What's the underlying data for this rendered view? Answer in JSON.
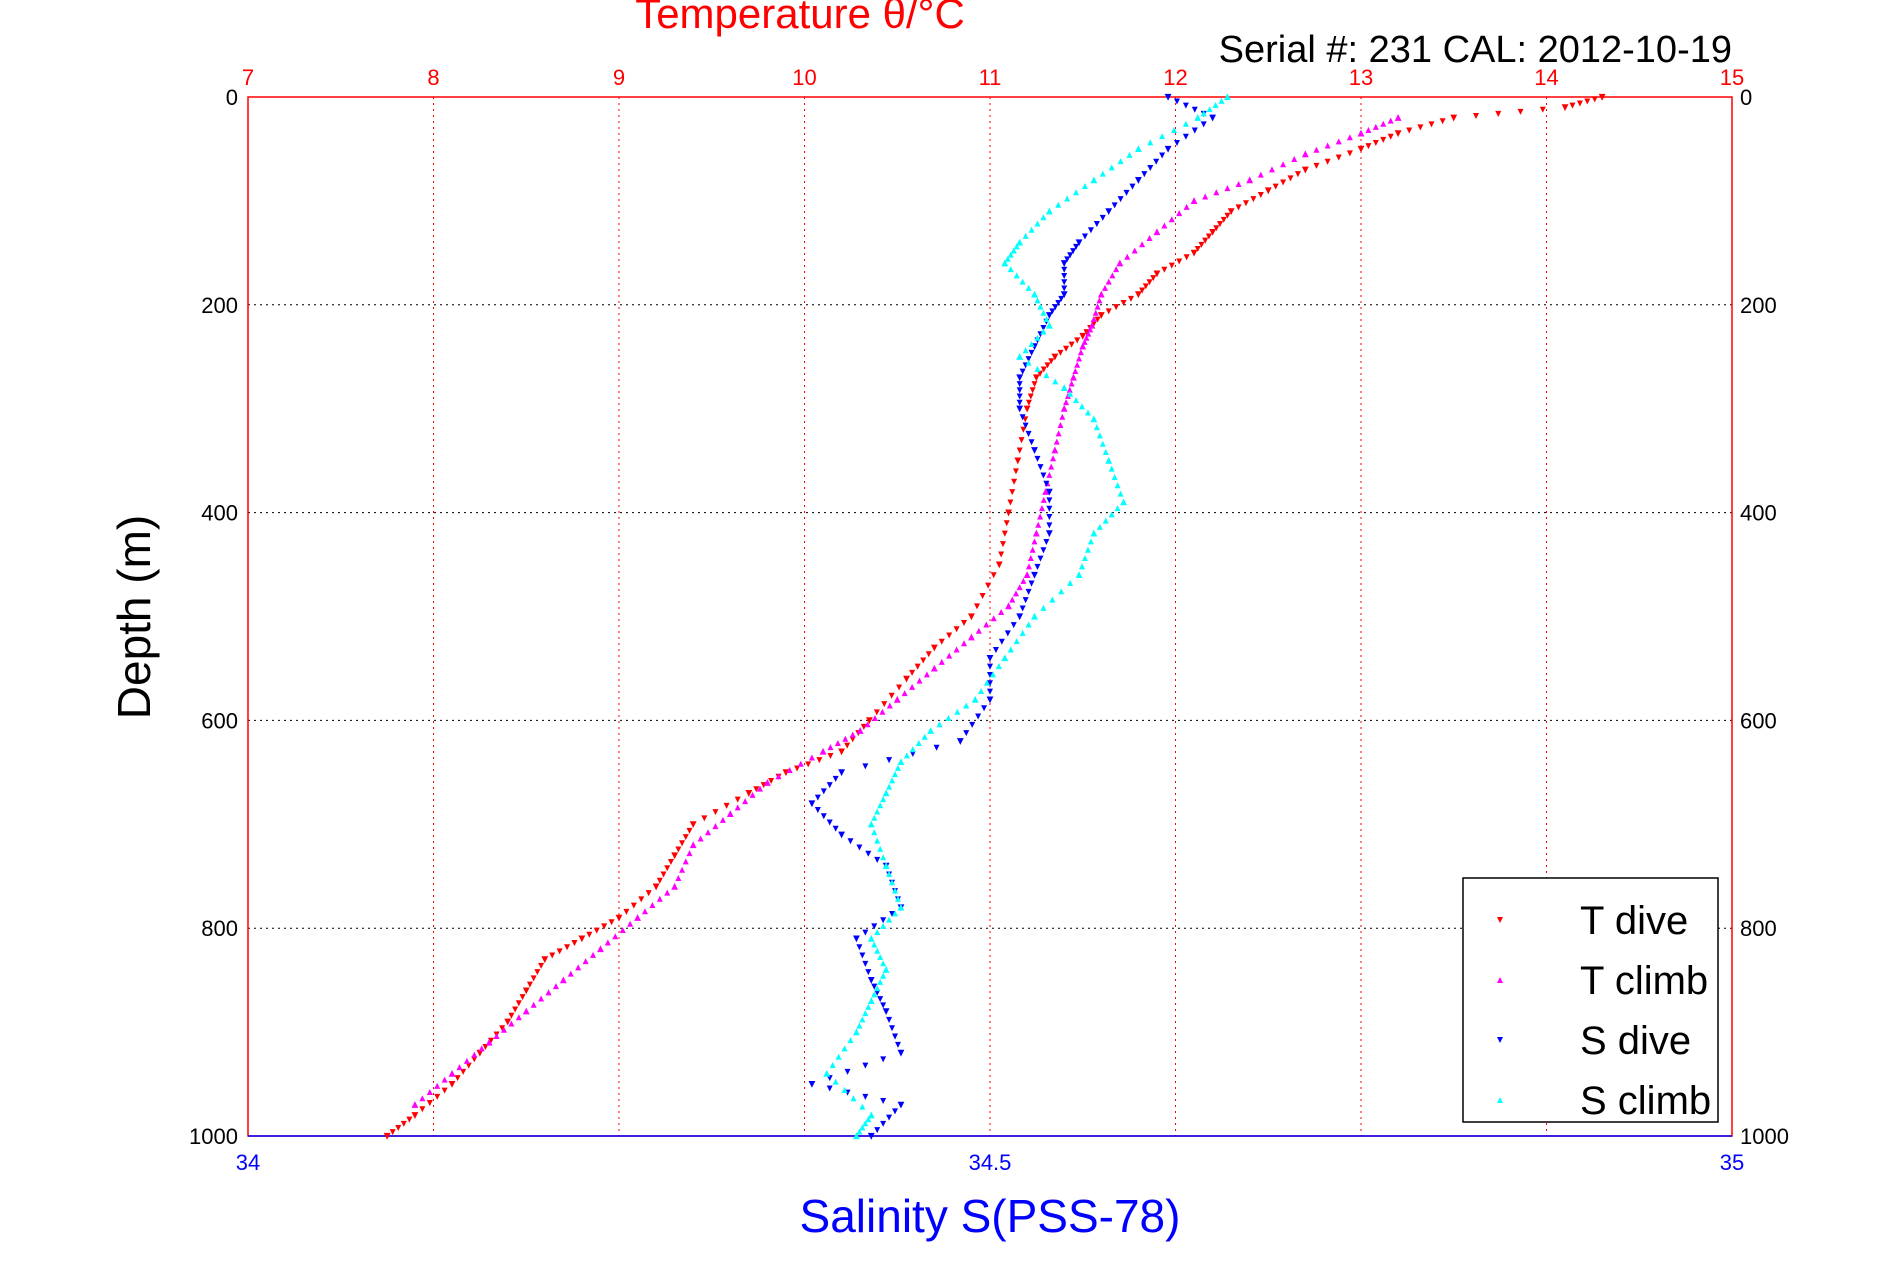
{
  "chart_data": {
    "type": "scatter",
    "title": "Temperature θ/°C",
    "subtitle": "Serial #: 231   CAL: 2012-10-19",
    "xlabel": "Salinity S(PSS-78)",
    "ylabel": "Depth (m)",
    "top_axis": {
      "lim": [
        7,
        15
      ],
      "ticks": [
        "7",
        "8",
        "9",
        "10",
        "11",
        "12",
        "13",
        "14",
        "15"
      ],
      "color": "#ff0000"
    },
    "bottom_axis": {
      "lim": [
        34,
        35
      ],
      "ticks": [
        "34",
        "34.5",
        "35"
      ],
      "color": "#0000ff"
    },
    "y_axis": {
      "lim": [
        0,
        1000
      ],
      "reversed": true,
      "ticks": [
        "0",
        "200",
        "400",
        "600",
        "800",
        "1000"
      ]
    },
    "grid": true,
    "legend_position": "bottom-right",
    "series": [
      {
        "name": "T dive",
        "axis": "top",
        "color": "#ff0000",
        "marker": "triangle-down",
        "points": [
          [
            14.3,
            0
          ],
          [
            14.1,
            10
          ],
          [
            13.5,
            20
          ],
          [
            13.2,
            35
          ],
          [
            13.0,
            50
          ],
          [
            12.7,
            70
          ],
          [
            12.5,
            90
          ],
          [
            12.3,
            110
          ],
          [
            12.2,
            130
          ],
          [
            12.1,
            150
          ],
          [
            11.9,
            170
          ],
          [
            11.8,
            190
          ],
          [
            11.6,
            210
          ],
          [
            11.5,
            230
          ],
          [
            11.35,
            250
          ],
          [
            11.25,
            270
          ],
          [
            11.2,
            300
          ],
          [
            11.15,
            350
          ],
          [
            11.1,
            400
          ],
          [
            11.05,
            450
          ],
          [
            10.9,
            500
          ],
          [
            10.7,
            530
          ],
          [
            10.55,
            560
          ],
          [
            10.35,
            600
          ],
          [
            10.2,
            630
          ],
          [
            9.9,
            650
          ],
          [
            9.7,
            670
          ],
          [
            9.4,
            700
          ],
          [
            9.3,
            730
          ],
          [
            9.2,
            760
          ],
          [
            9.0,
            790
          ],
          [
            8.8,
            810
          ],
          [
            8.6,
            830
          ],
          [
            8.5,
            860
          ],
          [
            8.4,
            890
          ],
          [
            8.25,
            920
          ],
          [
            8.1,
            950
          ],
          [
            7.9,
            980
          ],
          [
            7.75,
            1000
          ]
        ]
      },
      {
        "name": "T climb",
        "axis": "top",
        "color": "#ff00ff",
        "marker": "triangle-up",
        "points": [
          [
            13.2,
            20
          ],
          [
            13.0,
            35
          ],
          [
            12.7,
            55
          ],
          [
            12.4,
            80
          ],
          [
            12.1,
            100
          ],
          [
            11.9,
            130
          ],
          [
            11.7,
            160
          ],
          [
            11.6,
            190
          ],
          [
            11.55,
            220
          ],
          [
            11.5,
            240
          ],
          [
            11.45,
            270
          ],
          [
            11.4,
            300
          ],
          [
            11.35,
            340
          ],
          [
            11.3,
            380
          ],
          [
            11.25,
            420
          ],
          [
            11.2,
            460
          ],
          [
            11.1,
            490
          ],
          [
            10.9,
            520
          ],
          [
            10.7,
            550
          ],
          [
            10.5,
            580
          ],
          [
            10.3,
            610
          ],
          [
            10.1,
            630
          ],
          [
            9.8,
            660
          ],
          [
            9.6,
            690
          ],
          [
            9.4,
            720
          ],
          [
            9.3,
            760
          ],
          [
            9.1,
            790
          ],
          [
            8.9,
            820
          ],
          [
            8.7,
            850
          ],
          [
            8.5,
            880
          ],
          [
            8.3,
            910
          ],
          [
            8.1,
            940
          ],
          [
            7.9,
            970
          ]
        ]
      },
      {
        "name": "S dive",
        "axis": "bottom",
        "color": "#0000ff",
        "marker": "triangle-down",
        "points": [
          [
            34.62,
            0
          ],
          [
            34.65,
            20
          ],
          [
            34.62,
            50
          ],
          [
            34.6,
            80
          ],
          [
            34.58,
            110
          ],
          [
            34.56,
            140
          ],
          [
            34.55,
            160
          ],
          [
            34.55,
            190
          ],
          [
            34.54,
            210
          ],
          [
            34.53,
            240
          ],
          [
            34.52,
            270
          ],
          [
            34.52,
            300
          ],
          [
            34.53,
            340
          ],
          [
            34.54,
            380
          ],
          [
            34.54,
            420
          ],
          [
            34.53,
            460
          ],
          [
            34.52,
            500
          ],
          [
            34.5,
            540
          ],
          [
            34.5,
            580
          ],
          [
            34.48,
            620
          ],
          [
            34.4,
            650
          ],
          [
            34.38,
            680
          ],
          [
            34.4,
            710
          ],
          [
            34.43,
            740
          ],
          [
            34.44,
            780
          ],
          [
            34.41,
            810
          ],
          [
            34.42,
            850
          ],
          [
            34.43,
            880
          ],
          [
            34.44,
            920
          ],
          [
            34.38,
            950
          ],
          [
            34.44,
            970
          ],
          [
            34.42,
            1000
          ]
        ]
      },
      {
        "name": "S climb",
        "axis": "bottom",
        "color": "#00ffff",
        "marker": "triangle-up",
        "points": [
          [
            34.66,
            0
          ],
          [
            34.64,
            20
          ],
          [
            34.6,
            50
          ],
          [
            34.57,
            80
          ],
          [
            34.54,
            110
          ],
          [
            34.52,
            140
          ],
          [
            34.51,
            160
          ],
          [
            34.53,
            190
          ],
          [
            34.54,
            220
          ],
          [
            34.52,
            250
          ],
          [
            34.55,
            280
          ],
          [
            34.57,
            310
          ],
          [
            34.58,
            350
          ],
          [
            34.59,
            390
          ],
          [
            34.57,
            420
          ],
          [
            34.56,
            460
          ],
          [
            34.53,
            500
          ],
          [
            34.51,
            540
          ],
          [
            34.49,
            580
          ],
          [
            34.46,
            610
          ],
          [
            34.44,
            640
          ],
          [
            34.43,
            670
          ],
          [
            34.42,
            700
          ],
          [
            34.43,
            740
          ],
          [
            34.44,
            780
          ],
          [
            34.42,
            810
          ],
          [
            34.43,
            840
          ],
          [
            34.42,
            870
          ],
          [
            34.41,
            900
          ],
          [
            34.39,
            940
          ],
          [
            34.42,
            980
          ],
          [
            34.41,
            1000
          ]
        ]
      }
    ]
  }
}
